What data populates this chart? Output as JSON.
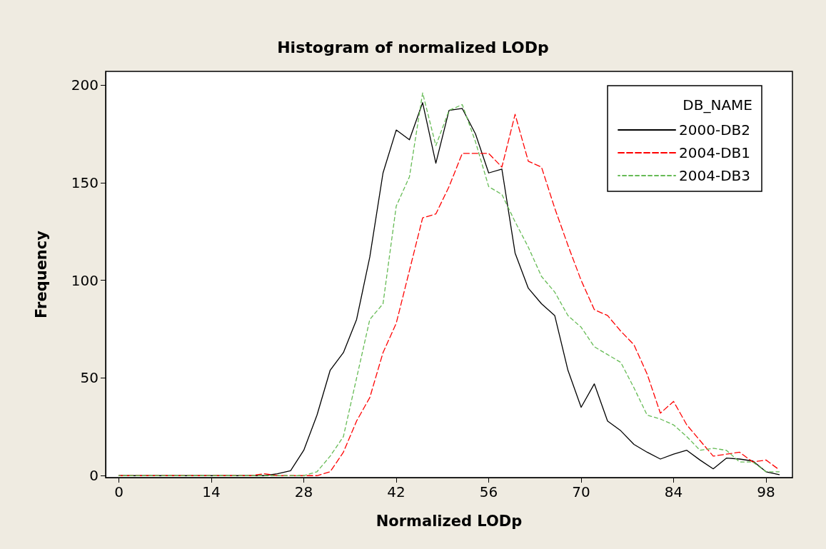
{
  "chart_data": {
    "type": "line",
    "title": "Histogram of normalized LODp",
    "xlabel": "Normalized LODp",
    "ylabel": "Frequency",
    "legend_title": "DB_NAME",
    "legend": "top right",
    "grid": false,
    "marker": "none",
    "x": [
      0,
      2,
      4,
      6,
      8,
      10,
      12,
      14,
      16,
      18,
      20,
      22,
      24,
      26,
      28,
      30,
      32,
      34,
      36,
      38,
      40,
      42,
      44,
      46,
      48,
      50,
      52,
      54,
      56,
      58,
      60,
      62,
      64,
      66,
      68,
      70,
      72,
      74,
      76,
      78,
      80,
      82,
      84,
      86,
      88,
      90,
      92,
      94,
      96,
      98,
      100
    ],
    "xlim": [
      -2,
      102
    ],
    "xticks": [
      0,
      14,
      28,
      42,
      56,
      70,
      84,
      98
    ],
    "ylim": [
      -1,
      207
    ],
    "yticks": [
      0,
      50,
      100,
      150,
      200
    ],
    "series": [
      {
        "name": "2000-DB2",
        "color": "#000000",
        "line_style": "solid",
        "values": [
          0,
          0,
          0,
          0,
          0,
          0,
          0,
          0,
          0,
          0,
          0,
          0,
          1,
          2.5,
          13,
          31,
          54,
          63,
          80,
          112,
          155,
          177,
          172,
          191,
          160,
          187,
          188,
          175,
          155,
          157,
          114,
          96,
          88,
          82,
          54,
          35,
          47,
          28,
          23,
          16,
          12,
          8.5,
          11,
          13,
          8,
          3.5,
          9,
          8.5,
          7.5,
          2,
          0.5
        ]
      },
      {
        "name": "2004-DB1",
        "color": "#ff0000",
        "line_style": "dashed",
        "values": [
          0,
          0,
          0,
          0,
          0,
          0,
          0,
          0,
          0,
          0,
          0,
          1,
          0,
          0,
          0,
          0,
          2,
          12,
          28,
          40,
          63,
          78,
          105,
          132,
          134,
          148,
          165,
          165,
          165,
          158,
          185,
          161,
          158,
          137,
          118,
          100,
          85,
          82,
          74,
          67,
          52,
          32,
          38,
          26,
          18,
          10,
          11,
          12,
          7,
          8,
          3
        ]
      },
      {
        "name": "2004-DB3",
        "color": "#66bb55",
        "line_style": "dotted",
        "values": [
          0,
          0,
          0,
          0,
          0,
          0,
          0,
          0,
          0,
          0,
          0,
          0,
          0,
          0,
          0,
          2,
          10,
          20,
          50,
          80,
          88,
          138,
          153,
          196,
          169,
          187,
          190,
          171,
          148,
          144,
          130,
          117,
          102,
          94,
          82,
          76,
          66,
          62,
          58,
          45,
          31,
          29,
          26,
          20,
          13,
          14,
          13,
          7,
          7,
          2,
          2
        ]
      }
    ]
  }
}
